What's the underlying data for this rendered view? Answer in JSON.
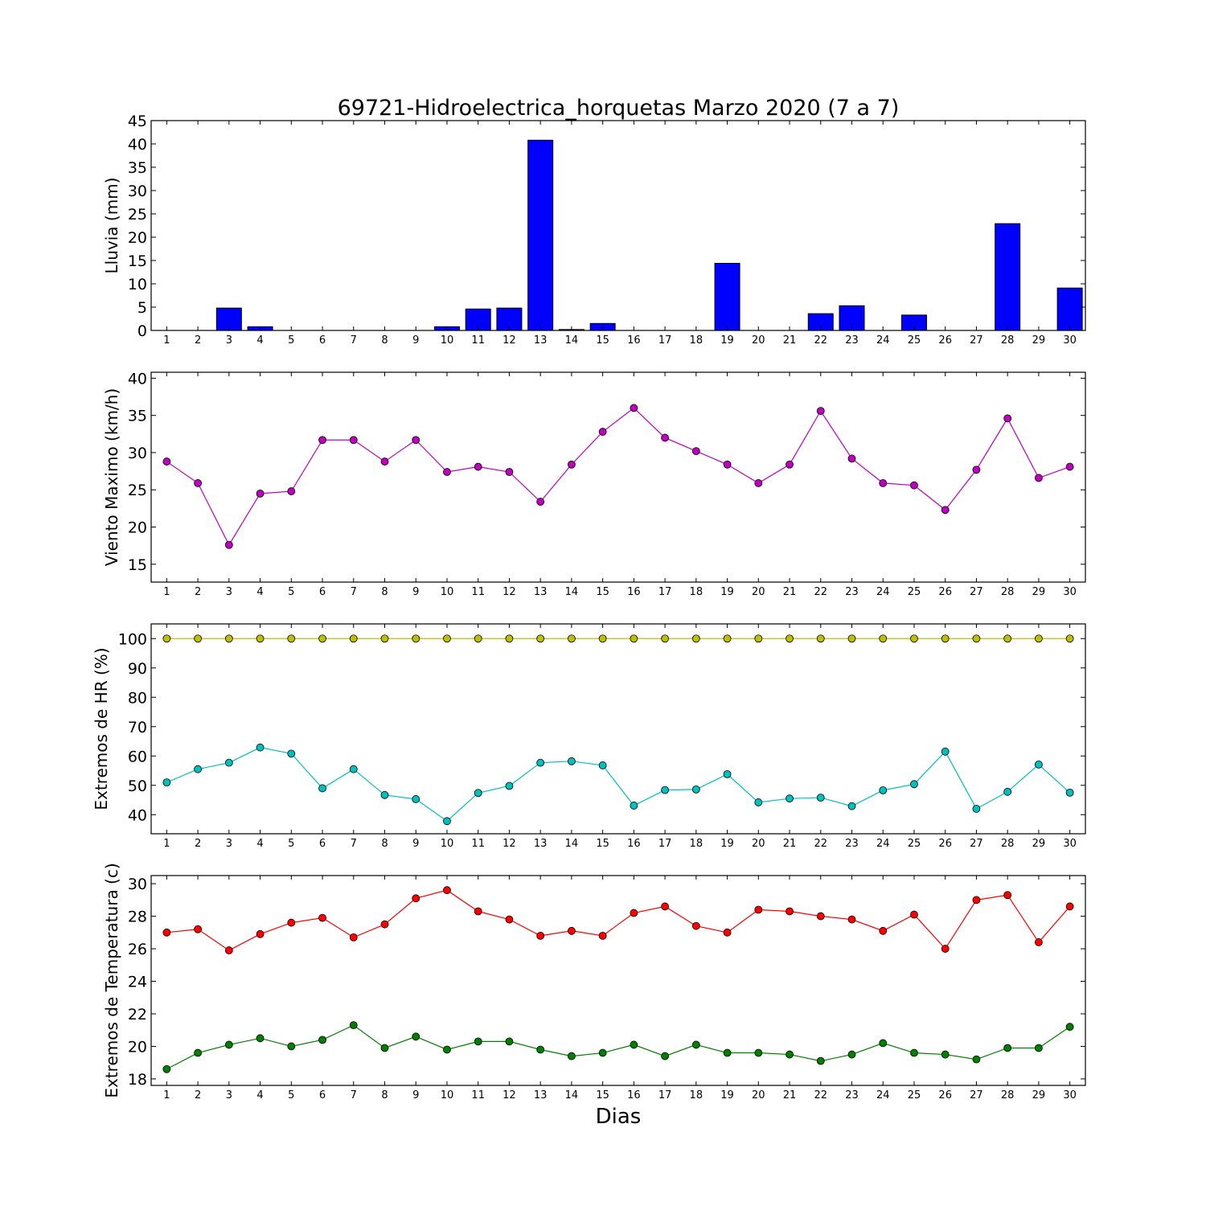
{
  "title": "69721-Hidroelectrica_horquetas Marzo 2020  (7 a 7)",
  "xlabel": "Dias",
  "chart_data": [
    {
      "type": "bar",
      "ylabel": "Lluvia (mm)",
      "ylim": [
        0,
        45
      ],
      "yticks": [
        0,
        5,
        10,
        15,
        20,
        25,
        30,
        35,
        40,
        45
      ],
      "xlim": [
        0.5,
        30.5
      ],
      "categories": [
        1,
        2,
        3,
        4,
        5,
        6,
        7,
        8,
        9,
        10,
        11,
        12,
        13,
        14,
        15,
        16,
        17,
        18,
        19,
        20,
        21,
        22,
        23,
        24,
        25,
        26,
        27,
        28,
        29,
        30
      ],
      "series": [
        {
          "color": "#0000ff",
          "values": [
            0,
            0,
            4.8,
            0.8,
            0,
            0,
            0,
            0,
            0,
            0.8,
            4.6,
            4.8,
            40.8,
            0.2,
            1.5,
            0,
            0,
            0,
            14.4,
            0,
            0,
            3.6,
            5.3,
            0,
            3.3,
            0,
            0,
            22.9,
            0,
            9.1
          ]
        }
      ]
    },
    {
      "type": "line",
      "ylabel": "Viento Maximo (km/h)",
      "ylim": [
        12.6,
        40.8
      ],
      "yticks": [
        15,
        20,
        25,
        30,
        35,
        40
      ],
      "xlim": [
        0.5,
        30.5
      ],
      "x": [
        1,
        2,
        3,
        4,
        5,
        6,
        7,
        8,
        9,
        10,
        11,
        12,
        13,
        14,
        15,
        16,
        17,
        18,
        19,
        20,
        21,
        22,
        23,
        24,
        25,
        26,
        27,
        28,
        29,
        30
      ],
      "series": [
        {
          "color": "#bf00bf",
          "values": [
            28.8,
            25.9,
            17.6,
            24.5,
            24.8,
            31.7,
            31.7,
            28.8,
            31.7,
            27.4,
            28.1,
            27.4,
            23.4,
            28.4,
            32.8,
            36.0,
            32.0,
            30.2,
            28.4,
            25.9,
            28.4,
            35.6,
            29.2,
            25.9,
            25.6,
            22.3,
            27.7,
            34.6,
            26.6,
            28.1
          ]
        }
      ]
    },
    {
      "type": "line",
      "ylabel": "Extremos de HR (%)",
      "ylim": [
        33.5,
        105
      ],
      "yticks": [
        40,
        50,
        60,
        70,
        80,
        90,
        100
      ],
      "xlim": [
        0.5,
        30.5
      ],
      "x": [
        1,
        2,
        3,
        4,
        5,
        6,
        7,
        8,
        9,
        10,
        11,
        12,
        13,
        14,
        15,
        16,
        17,
        18,
        19,
        20,
        21,
        22,
        23,
        24,
        25,
        26,
        27,
        28,
        29,
        30
      ],
      "series": [
        {
          "color": "#bfbf00",
          "values": [
            100,
            100,
            100,
            100,
            100,
            100,
            100,
            100,
            100,
            100,
            100,
            100,
            100,
            100,
            100,
            100,
            100,
            100,
            100,
            100,
            100,
            100,
            100,
            100,
            100,
            100,
            100,
            100,
            100,
            100
          ]
        },
        {
          "color": "#00bfbf",
          "values": [
            51,
            55.5,
            57.7,
            62.9,
            60.8,
            49,
            55.5,
            46.7,
            45.3,
            37.8,
            47.4,
            49.8,
            57.7,
            58.2,
            56.8,
            43.1,
            48.4,
            48.6,
            53.8,
            44.2,
            45.5,
            45.8,
            42.9,
            48.3,
            50.4,
            61.5,
            42,
            47.8,
            57.1,
            47.5
          ]
        }
      ]
    },
    {
      "type": "line",
      "ylabel": "Extremos de Temperatura (c)",
      "ylim": [
        17.6,
        30.5
      ],
      "yticks": [
        18,
        20,
        22,
        24,
        26,
        28,
        30
      ],
      "xlim": [
        0.5,
        30.5
      ],
      "x": [
        1,
        2,
        3,
        4,
        5,
        6,
        7,
        8,
        9,
        10,
        11,
        12,
        13,
        14,
        15,
        16,
        17,
        18,
        19,
        20,
        21,
        22,
        23,
        24,
        25,
        26,
        27,
        28,
        29,
        30
      ],
      "series": [
        {
          "color": "#ff0000",
          "values": [
            27.0,
            27.2,
            25.9,
            26.9,
            27.6,
            27.9,
            26.7,
            27.5,
            29.1,
            29.6,
            28.3,
            27.8,
            26.8,
            27.1,
            26.8,
            28.2,
            28.6,
            27.4,
            27.0,
            28.4,
            28.3,
            28.0,
            27.8,
            27.1,
            28.1,
            26.0,
            29.0,
            29.3,
            26.4,
            28.6
          ]
        },
        {
          "color": "#007f00",
          "values": [
            18.6,
            19.6,
            20.1,
            20.5,
            20.0,
            20.4,
            21.3,
            19.9,
            20.6,
            19.8,
            20.3,
            20.3,
            19.8,
            19.4,
            19.6,
            20.1,
            19.4,
            20.1,
            19.6,
            19.6,
            19.5,
            19.1,
            19.5,
            20.2,
            19.6,
            19.5,
            19.2,
            19.9,
            19.9,
            21.2
          ]
        }
      ]
    }
  ]
}
